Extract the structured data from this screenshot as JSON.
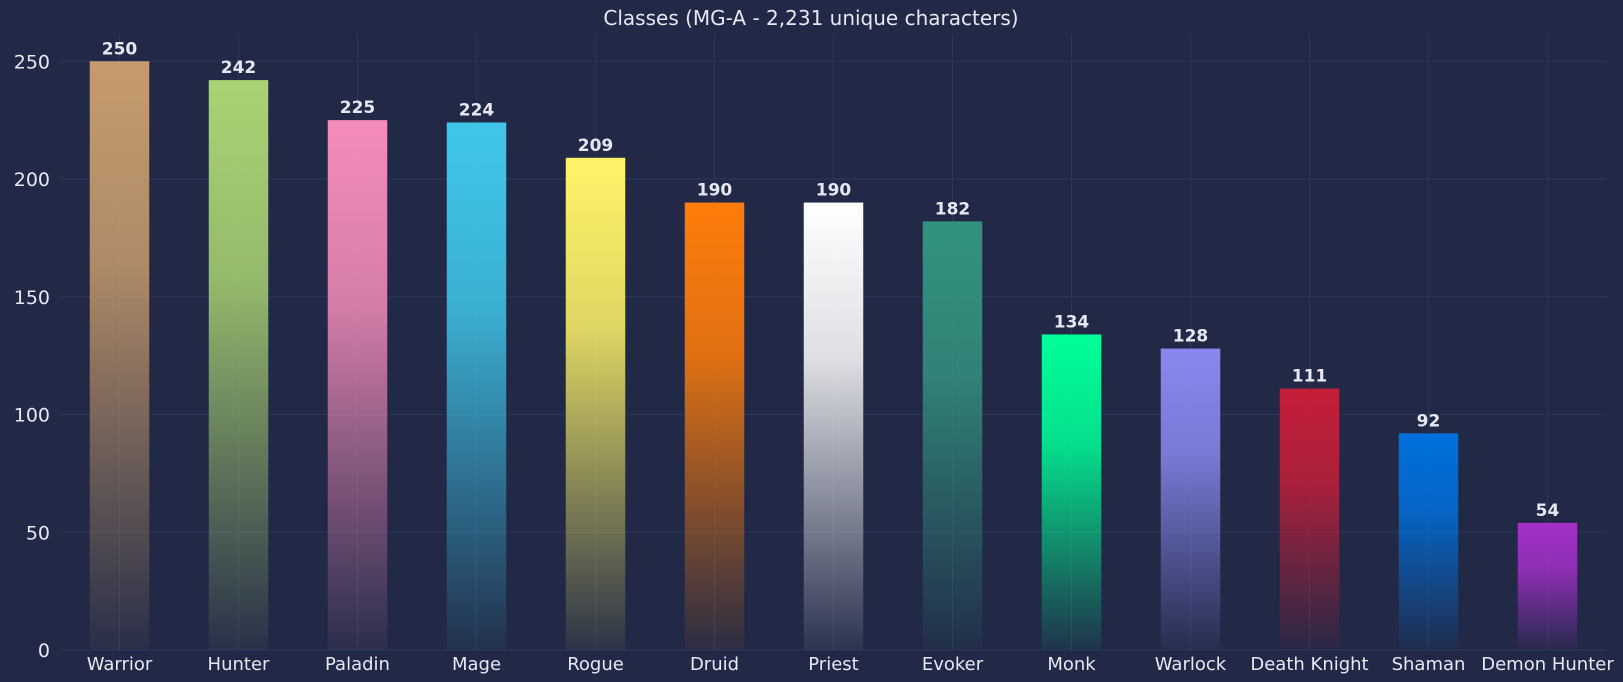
{
  "chart_data": {
    "type": "bar",
    "title": "Classes (MG-A - 2,231 unique characters)",
    "xlabel": "",
    "ylabel": "",
    "ylim": [
      0,
      262
    ],
    "yticks": [
      0,
      50,
      100,
      150,
      200,
      250
    ],
    "grid": true,
    "legend": "none",
    "categories": [
      "Warrior",
      "Hunter",
      "Paladin",
      "Mage",
      "Rogue",
      "Druid",
      "Priest",
      "Evoker",
      "Monk",
      "Warlock",
      "Death Knight",
      "Shaman",
      "Demon Hunter"
    ],
    "values": [
      250,
      242,
      225,
      224,
      209,
      190,
      190,
      182,
      134,
      128,
      111,
      92,
      54
    ],
    "colors": [
      "#C69B6D",
      "#AAD372",
      "#F48CBA",
      "#3FC7EB",
      "#FFF468",
      "#FF7C0A",
      "#FFFFFF",
      "#33937F",
      "#00FF98",
      "#8788EE",
      "#C41E3A",
      "#0070DD",
      "#A330C9"
    ]
  }
}
